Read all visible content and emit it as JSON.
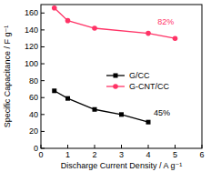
{
  "chart_data": {
    "type": "line",
    "x_label": "Discharge Current Density / A g⁻¹",
    "y_label": "Specific Capacitance / F g⁻¹",
    "xlim": [
      0,
      6
    ],
    "xticks": [
      0,
      1,
      2,
      3,
      4,
      5,
      6
    ],
    "ylim": [
      0,
      170
    ],
    "yticks": [
      0,
      20,
      40,
      60,
      80,
      100,
      120,
      140,
      160
    ],
    "grid": false,
    "legend": "right",
    "series": [
      {
        "name": "G/CC",
        "color": "#000000",
        "marker": "square",
        "line_style": "solid",
        "x": [
          0.5,
          1,
          2,
          3,
          4
        ],
        "values": [
          68,
          59,
          46,
          40,
          31
        ]
      },
      {
        "name": "G-CNT/CC",
        "color": "#ff3366",
        "marker": "circle",
        "line_style": "solid",
        "x": [
          0.5,
          1,
          2,
          4,
          5
        ],
        "values": [
          166,
          151,
          142,
          136,
          130
        ]
      }
    ],
    "annotations": [
      {
        "text": "82%",
        "x": 4.35,
        "y": 146,
        "color": "#ff3366"
      },
      {
        "text": "45%",
        "x": 4.2,
        "y": 39,
        "color": "#000000"
      }
    ]
  }
}
